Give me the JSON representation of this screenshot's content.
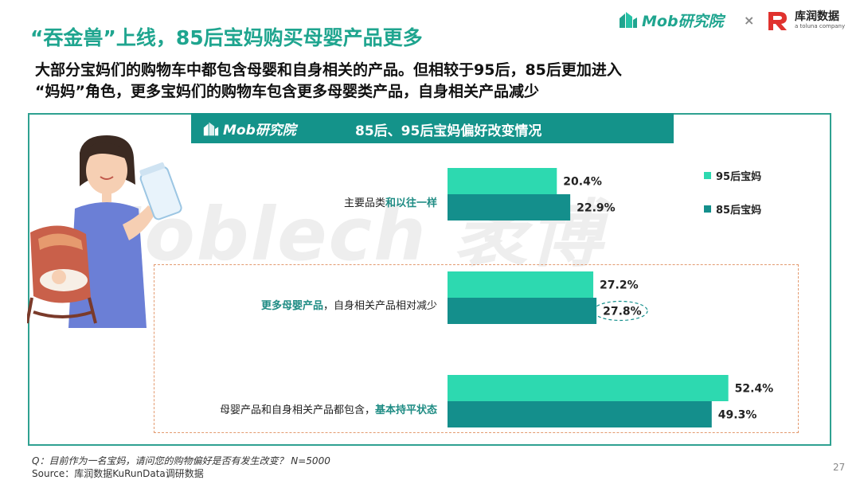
{
  "header": {
    "title": "“吞金兽”上线，85后宝妈购买母婴产品更多",
    "subtitle_line1": "大部分宝妈们的购物车中都包含母婴和自身相关的产品。但相较于95后，85后更加进入",
    "subtitle_line2": "“妈妈”角色，更多宝妈们的购物车包含更多母婴类产品，自身相关产品减少"
  },
  "logos": {
    "mob": "Mob研究院",
    "times": "×",
    "kurun_name": "库润数据",
    "kurun_sub": "a toluna company"
  },
  "banner": {
    "logo_text": "Mob研究院",
    "title": "85后、95后宝妈偏好改变情况"
  },
  "watermark": "Moblech 袤博",
  "categories": [
    {
      "plain": "主要品类",
      "highlight": "和以往一样",
      "order": "plain-first"
    },
    {
      "highlight": "更多母婴产品",
      "plain": "，自身相关产品相对减少",
      "order": "highlight-first"
    },
    {
      "plain": "母婴产品和自身相关产品都包含，",
      "highlight": "基本持平状态",
      "order": "plain-first"
    }
  ],
  "chart_data": {
    "type": "bar",
    "orientation": "horizontal",
    "title": "85后、95后宝妈偏好改变情况",
    "categories": [
      "主要品类和以往一样",
      "更多母婴产品，自身相关产品相对减少",
      "母婴产品和自身相关产品都包含，基本持平状态"
    ],
    "series": [
      {
        "name": "95后宝妈",
        "values": [
          20.4,
          27.2,
          52.4
        ],
        "labels": [
          "20.4%",
          "27.2%",
          "52.4%"
        ],
        "color": "#2dd9b0"
      },
      {
        "name": "85后宝妈",
        "values": [
          22.9,
          27.8,
          49.3
        ],
        "labels": [
          "22.9%",
          "27.8%",
          "49.3%"
        ],
        "color": "#148f8c"
      }
    ],
    "unit": "%",
    "xlim": [
      0,
      100
    ],
    "legend": "right",
    "grid": false,
    "highlighted_value": "27.8%"
  },
  "footer": {
    "question": "Q：目前作为一名宝妈，请问您的购物偏好是否有发生改变？ N=5000",
    "source": "Source：库润数据KuRunData调研数据"
  },
  "page_number": "27",
  "colors": {
    "accent": "#1fa58f",
    "banner": "#14938a",
    "frame": "#2fa191",
    "dash": "#e39a6f",
    "series_95": "#2dd9b0",
    "series_85": "#148f8c"
  }
}
